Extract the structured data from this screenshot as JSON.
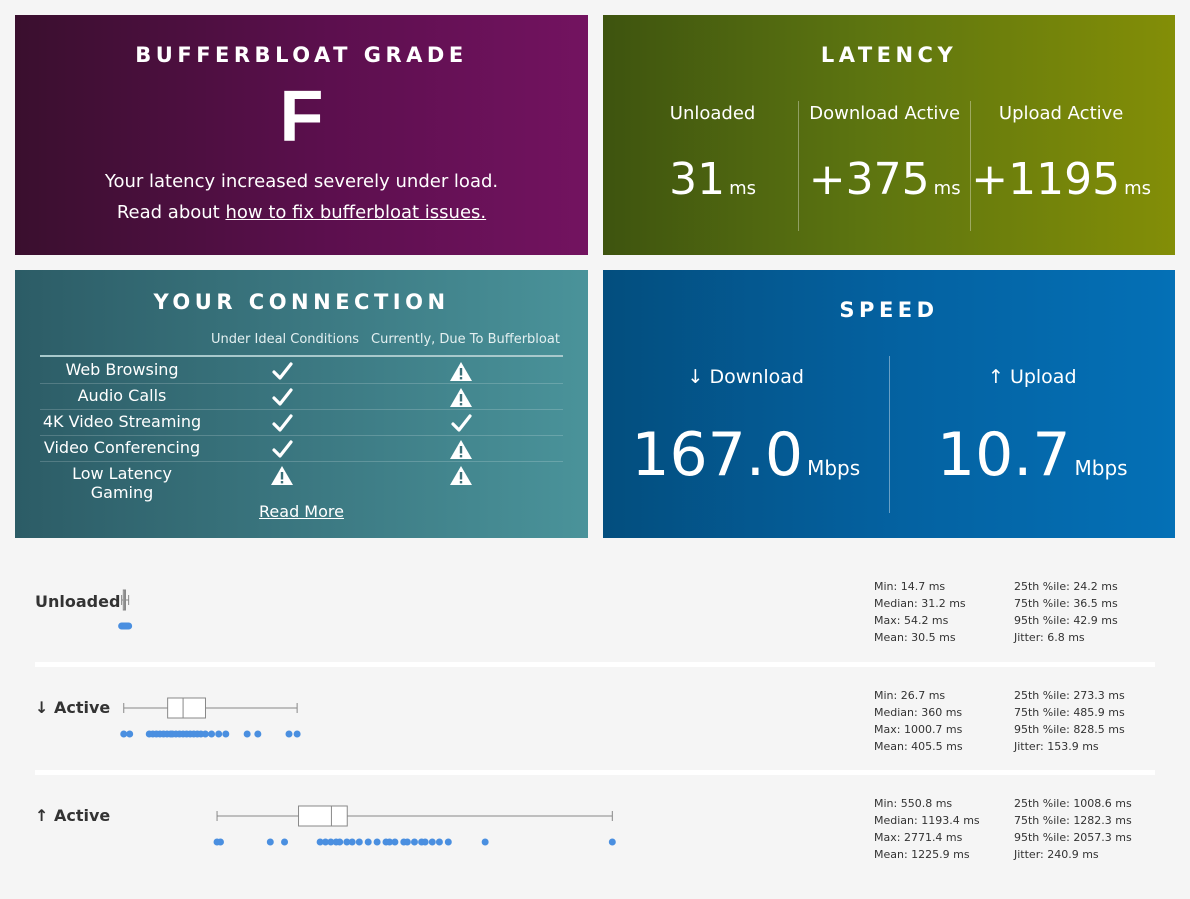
{
  "grade": {
    "title": "BUFFERBLOAT GRADE",
    "letter": "F",
    "description": "Your latency increased severely under load.",
    "link_prefix": "Read about ",
    "link_text": "how to fix bufferbloat issues.",
    "link_suffix": ""
  },
  "latency": {
    "title": "LATENCY",
    "columns": [
      {
        "label": "Unloaded",
        "value": "31",
        "unit": "ms"
      },
      {
        "label": "Download Active",
        "value": "+375",
        "unit": "ms"
      },
      {
        "label": "Upload Active",
        "value": "+1195",
        "unit": "ms"
      }
    ]
  },
  "connection": {
    "title": "YOUR CONNECTION",
    "col_ideal": "Under Ideal Conditions",
    "col_current": "Currently, Due To Bufferbloat",
    "rows": [
      {
        "name": "Web Browsing",
        "ideal": "check",
        "current": "warning"
      },
      {
        "name": "Audio Calls",
        "ideal": "check",
        "current": "warning"
      },
      {
        "name": "4K Video Streaming",
        "ideal": "check",
        "current": "check"
      },
      {
        "name": "Video Conferencing",
        "ideal": "check",
        "current": "warning"
      },
      {
        "name": "Low Latency Gaming",
        "ideal": "warning",
        "current": "warning"
      }
    ],
    "read_more": "Read More"
  },
  "speed": {
    "title": "SPEED",
    "download": {
      "arrow": "↓",
      "label": "Download",
      "value": "167.0",
      "unit": "Mbps"
    },
    "upload": {
      "arrow": "↑",
      "label": "Upload",
      "value": "10.7",
      "unit": "Mbps"
    }
  },
  "details": [
    {
      "label": "Unloaded",
      "stats_left": [
        "Min: 14.7 ms",
        "Median: 31.2 ms",
        "Max: 54.2 ms",
        "Mean: 30.5 ms"
      ],
      "stats_right": [
        "25th %ile: 24.2 ms",
        "75th %ile: 36.5 ms",
        "95th %ile: 42.9 ms",
        "Jitter: 6.8 ms"
      ]
    },
    {
      "label": "↓ Active",
      "stats_left": [
        "Min: 26.7 ms",
        "Median: 360 ms",
        "Max: 1000.7 ms",
        "Mean: 405.5 ms"
      ],
      "stats_right": [
        "25th %ile: 273.3 ms",
        "75th %ile: 485.9 ms",
        "95th %ile: 828.5 ms",
        "Jitter: 153.9 ms"
      ]
    },
    {
      "label": "↑ Active",
      "stats_left": [
        "Min: 550.8 ms",
        "Median: 1193.4 ms",
        "Max: 2771.4 ms",
        "Mean: 1225.9 ms"
      ],
      "stats_right": [
        "25th %ile: 1008.6 ms",
        "75th %ile: 1282.3 ms",
        "95th %ile: 2057.3 ms",
        "Jitter: 240.9 ms"
      ]
    }
  ],
  "colors": {
    "dot": "#4a8fe0",
    "box_stroke": "#888888"
  }
}
